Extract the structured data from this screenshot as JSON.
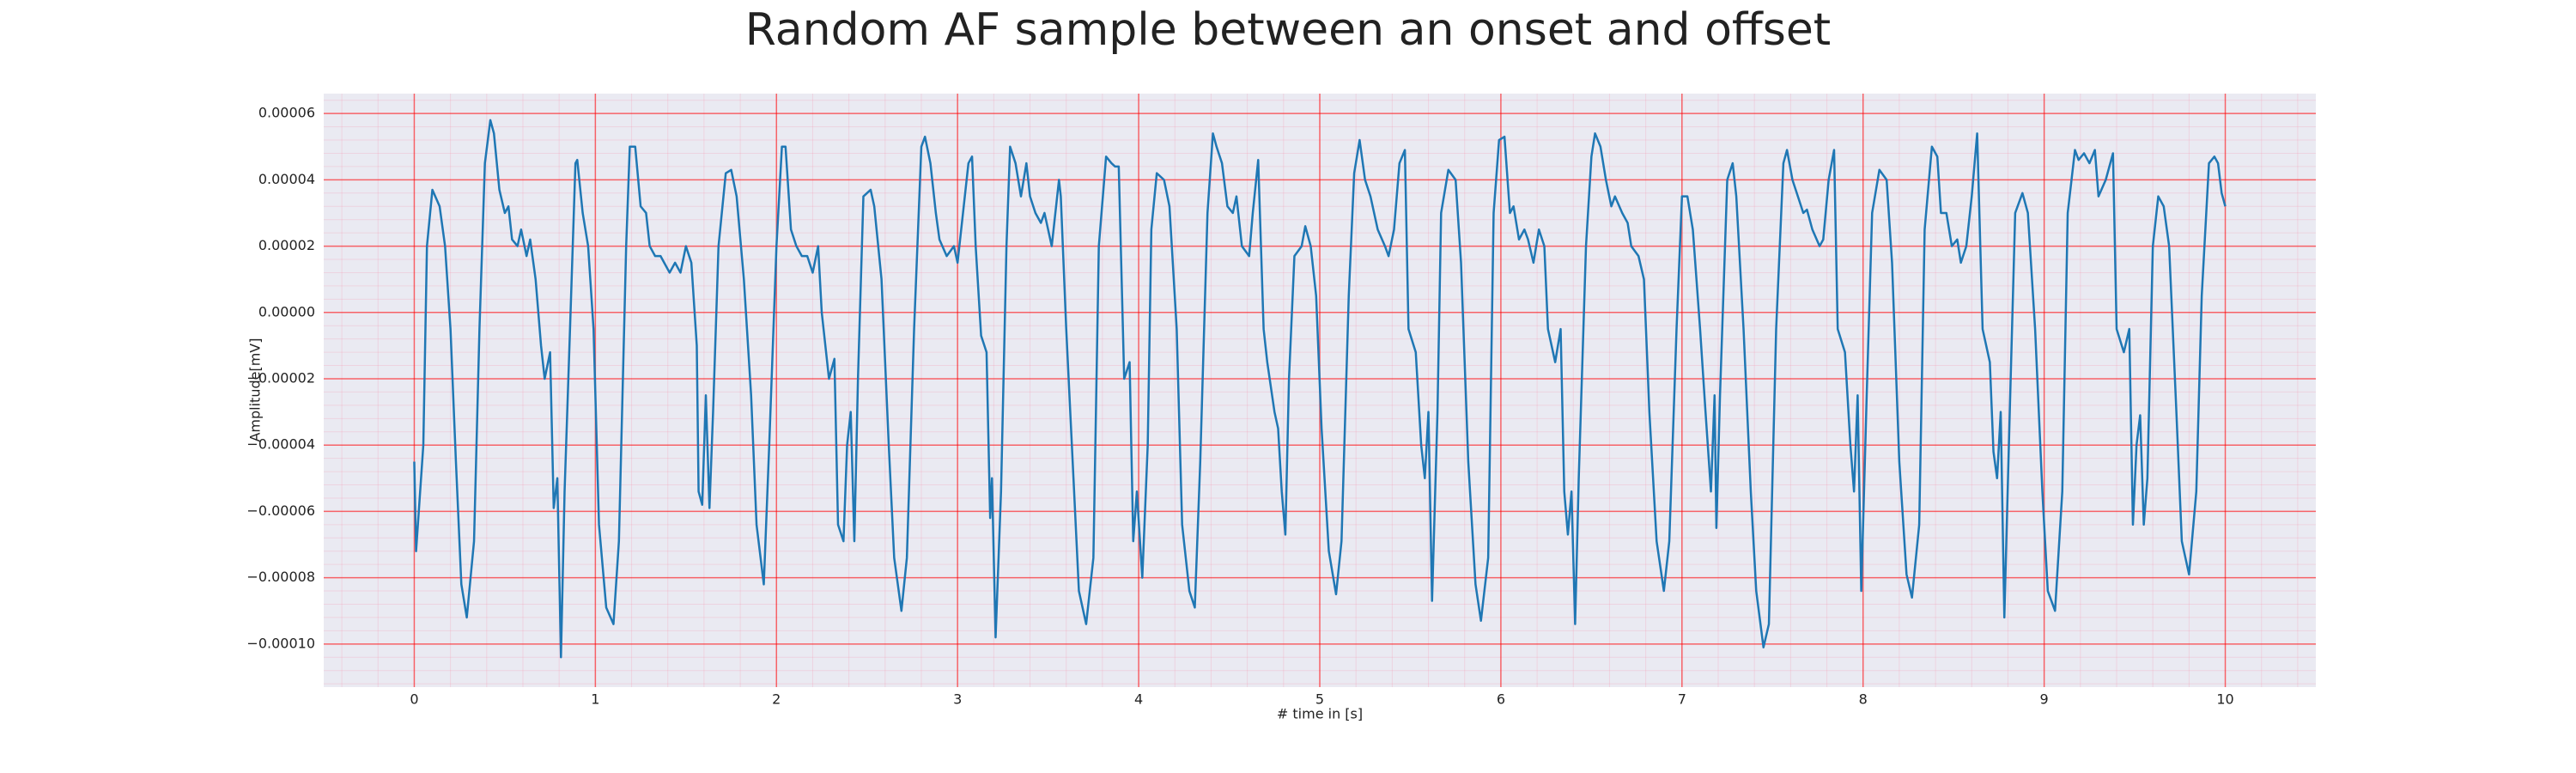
{
  "chart_data": {
    "type": "line",
    "title": "Random AF sample between an onset and offset",
    "xlabel": "# time in [s]",
    "ylabel": "Amplitude[mV]",
    "color": "#1f77b4",
    "grid": true,
    "xlim": [
      -0.5,
      10.5
    ],
    "ylim": [
      -0.000113,
      6.6e-05
    ],
    "xticks": [
      0,
      1,
      2,
      3,
      4,
      5,
      6,
      7,
      8,
      9,
      10
    ],
    "yticks": [
      {
        "value": -0.0001,
        "label": "−0.00010"
      },
      {
        "value": -8e-05,
        "label": "−0.00008"
      },
      {
        "value": -6e-05,
        "label": "−0.00006"
      },
      {
        "value": -4e-05,
        "label": "−0.00004"
      },
      {
        "value": -2e-05,
        "label": "−0.00002"
      },
      {
        "value": 0,
        "label": "0.00000"
      },
      {
        "value": 2e-05,
        "label": "0.00002"
      },
      {
        "value": 4e-05,
        "label": "0.00004"
      },
      {
        "value": 6e-05,
        "label": "0.00006"
      }
    ],
    "x": [
      0,
      0.01,
      0.05,
      0.07,
      0.1,
      0.14,
      0.17,
      0.2,
      0.23,
      0.26,
      0.29,
      0.33,
      0.36,
      0.39,
      0.42,
      0.44,
      0.47,
      0.5,
      0.52,
      0.54,
      0.57,
      0.59,
      0.62,
      0.64,
      0.67,
      0.7,
      0.72,
      0.75,
      0.77,
      0.79,
      0.81,
      0.83,
      0.86,
      0.89,
      0.9,
      0.93,
      0.96,
      0.99,
      1.02,
      1.06,
      1.1,
      1.13,
      1.17,
      1.19,
      1.22,
      1.25,
      1.28,
      1.3,
      1.33,
      1.36,
      1.38,
      1.41,
      1.44,
      1.47,
      1.5,
      1.53,
      1.56,
      1.57,
      1.59,
      1.61,
      1.63,
      1.65,
      1.68,
      1.72,
      1.75,
      1.78,
      1.82,
      1.86,
      1.89,
      1.93,
      1.96,
      2.0,
      2.03,
      2.05,
      2.08,
      2.11,
      2.14,
      2.17,
      2.2,
      2.23,
      2.25,
      2.29,
      2.32,
      2.34,
      2.37,
      2.39,
      2.41,
      2.43,
      2.45,
      2.48,
      2.52,
      2.54,
      2.58,
      2.62,
      2.65,
      2.69,
      2.72,
      2.76,
      2.8,
      2.82,
      2.85,
      2.88,
      2.9,
      2.94,
      2.98,
      3.0,
      3.03,
      3.06,
      3.08,
      3.1,
      3.13,
      3.16,
      3.18,
      3.19,
      3.21,
      3.24,
      3.27,
      3.29,
      3.32,
      3.35,
      3.38,
      3.4,
      3.43,
      3.46,
      3.48,
      3.52,
      3.56,
      3.57,
      3.6,
      3.64,
      3.67,
      3.71,
      3.75,
      3.78,
      3.82,
      3.85,
      3.87,
      3.89,
      3.92,
      3.95,
      3.97,
      3.99,
      4.02,
      4.05,
      4.07,
      4.1,
      4.14,
      4.17,
      4.21,
      4.24,
      4.28,
      4.31,
      4.34,
      4.38,
      4.41,
      4.43,
      4.46,
      4.49,
      4.52,
      4.54,
      4.57,
      4.61,
      4.63,
      4.66,
      4.69,
      4.71,
      4.75,
      4.77,
      4.79,
      4.81,
      4.83,
      4.86,
      4.9,
      4.92,
      4.95,
      4.98,
      5.01,
      5.05,
      5.09,
      5.12,
      5.16,
      5.19,
      5.22,
      5.25,
      5.28,
      5.32,
      5.36,
      5.38,
      5.41,
      5.44,
      5.47,
      5.49,
      5.53,
      5.56,
      5.58,
      5.6,
      5.62,
      5.65,
      5.67,
      5.71,
      5.75,
      5.78,
      5.82,
      5.86,
      5.89,
      5.93,
      5.96,
      5.99,
      6.02,
      6.05,
      6.07,
      6.1,
      6.13,
      6.15,
      6.18,
      6.21,
      6.24,
      6.26,
      6.3,
      6.33,
      6.35,
      6.37,
      6.39,
      6.41,
      6.43,
      6.47,
      6.5,
      6.52,
      6.55,
      6.58,
      6.61,
      6.63,
      6.67,
      6.7,
      6.72,
      6.76,
      6.79,
      6.82,
      6.86,
      6.9,
      6.93,
      6.97,
      7.0,
      7.03,
      7.06,
      7.1,
      7.13,
      7.16,
      7.18,
      7.19,
      7.21,
      7.25,
      7.28,
      7.3,
      7.34,
      7.38,
      7.41,
      7.45,
      7.48,
      7.52,
      7.56,
      7.58,
      7.61,
      7.64,
      7.67,
      7.69,
      7.72,
      7.76,
      7.78,
      7.81,
      7.84,
      7.86,
      7.9,
      7.93,
      7.95,
      7.97,
      7.99,
      8.02,
      8.05,
      8.09,
      8.13,
      8.16,
      8.2,
      8.24,
      8.27,
      8.31,
      8.34,
      8.38,
      8.41,
      8.43,
      8.46,
      8.49,
      8.52,
      8.54,
      8.57,
      8.6,
      8.63,
      8.66,
      8.7,
      8.72,
      8.74,
      8.76,
      8.78,
      8.81,
      8.84,
      8.88,
      8.91,
      8.95,
      8.99,
      9.02,
      9.06,
      9.1,
      9.13,
      9.17,
      9.19,
      9.22,
      9.25,
      9.28,
      9.3,
      9.34,
      9.38,
      9.4,
      9.44,
      9.47,
      9.49,
      9.51,
      9.53,
      9.55,
      9.57,
      9.6,
      9.63,
      9.66,
      9.69,
      9.73,
      9.76,
      9.8,
      9.84,
      9.87,
      9.91,
      9.94,
      9.96,
      9.98,
      10.0
    ],
    "values": [
      -4.5e-05,
      -7.2e-05,
      -4e-05,
      2e-05,
      3.7e-05,
      3.2e-05,
      2e-05,
      -5e-06,
      -4.5e-05,
      -8.2e-05,
      -9.2e-05,
      -6.9e-05,
      -5e-06,
      4.5e-05,
      5.8e-05,
      5.4e-05,
      3.7e-05,
      3e-05,
      3.2e-05,
      2.2e-05,
      2e-05,
      2.5e-05,
      1.7e-05,
      2.2e-05,
      1e-05,
      -1e-05,
      -2e-05,
      -1.2e-05,
      -5.9e-05,
      -5e-05,
      -0.000104,
      -5.4e-05,
      -5e-06,
      4.5e-05,
      4.6e-05,
      3e-05,
      2e-05,
      -5e-06,
      -6.4e-05,
      -8.9e-05,
      -9.4e-05,
      -6.9e-05,
      2e-05,
      5e-05,
      5e-05,
      3.2e-05,
      3e-05,
      2e-05,
      1.7e-05,
      1.7e-05,
      1.5e-05,
      1.2e-05,
      1.5e-05,
      1.2e-05,
      2e-05,
      1.5e-05,
      -1e-05,
      -5.4e-05,
      -5.8e-05,
      -2.5e-05,
      -5.9e-05,
      -3e-05,
      2e-05,
      4.2e-05,
      4.3e-05,
      3.5e-05,
      1e-05,
      -2.5e-05,
      -6.4e-05,
      -8.2e-05,
      -4e-05,
      2e-05,
      5e-05,
      5e-05,
      2.5e-05,
      2e-05,
      1.7e-05,
      1.7e-05,
      1.2e-05,
      2e-05,
      0,
      -2e-05,
      -1.4e-05,
      -6.4e-05,
      -6.9e-05,
      -4e-05,
      -3e-05,
      -6.9e-05,
      -2e-05,
      3.5e-05,
      3.7e-05,
      3.2e-05,
      1e-05,
      -4e-05,
      -7.4e-05,
      -9e-05,
      -7.4e-05,
      -5e-06,
      5e-05,
      5.3e-05,
      4.5e-05,
      3e-05,
      2.2e-05,
      1.7e-05,
      2e-05,
      1.5e-05,
      3e-05,
      4.5e-05,
      4.7e-05,
      2e-05,
      -7e-06,
      -1.2e-05,
      -6.2e-05,
      -5e-05,
      -9.8e-05,
      -5.4e-05,
      2e-05,
      5e-05,
      4.5e-05,
      3.5e-05,
      4.5e-05,
      3.5e-05,
      3e-05,
      2.7e-05,
      3e-05,
      2e-05,
      4e-05,
      3.5e-05,
      -5e-06,
      -5e-05,
      -8.4e-05,
      -9.4e-05,
      -7.4e-05,
      2e-05,
      4.7e-05,
      4.5e-05,
      4.4e-05,
      4.4e-05,
      -2e-05,
      -1.5e-05,
      -6.9e-05,
      -5.4e-05,
      -8e-05,
      -4e-05,
      2.5e-05,
      4.2e-05,
      4e-05,
      3.2e-05,
      -5e-06,
      -6.4e-05,
      -8.4e-05,
      -8.9e-05,
      -4.5e-05,
      3e-05,
      5.4e-05,
      5e-05,
      4.5e-05,
      3.2e-05,
      3e-05,
      3.5e-05,
      2e-05,
      1.7e-05,
      3e-05,
      4.6e-05,
      -5e-06,
      -1.5e-05,
      -3e-05,
      -3.5e-05,
      -5.4e-05,
      -6.7e-05,
      -2e-05,
      1.7e-05,
      2e-05,
      2.6e-05,
      2e-05,
      5e-06,
      -3.5e-05,
      -7.2e-05,
      -8.5e-05,
      -6.9e-05,
      5e-06,
      4.2e-05,
      5.2e-05,
      4e-05,
      3.5e-05,
      2.5e-05,
      2e-05,
      1.7e-05,
      2.5e-05,
      4.5e-05,
      4.9e-05,
      -5e-06,
      -1.2e-05,
      -4e-05,
      -5e-05,
      -3e-05,
      -8.7e-05,
      -3e-05,
      3e-05,
      4.3e-05,
      4e-05,
      1.5e-05,
      -4.5e-05,
      -8.2e-05,
      -9.3e-05,
      -7.4e-05,
      3e-05,
      5.2e-05,
      5.3e-05,
      3e-05,
      3.2e-05,
      2.2e-05,
      2.5e-05,
      2.2e-05,
      1.5e-05,
      2.5e-05,
      2e-05,
      -5e-06,
      -1.5e-05,
      -5e-06,
      -5.4e-05,
      -6.7e-05,
      -5.4e-05,
      -9.4e-05,
      -5e-05,
      2e-05,
      4.7e-05,
      5.4e-05,
      5e-05,
      4e-05,
      3.2e-05,
      3.5e-05,
      3e-05,
      2.7e-05,
      2e-05,
      1.7e-05,
      1e-05,
      -3e-05,
      -6.9e-05,
      -8.4e-05,
      -6.9e-05,
      -5e-06,
      3.5e-05,
      3.5e-05,
      2.5e-05,
      -5e-06,
      -3e-05,
      -5.4e-05,
      -2.5e-05,
      -6.5e-05,
      -2.5e-05,
      4e-05,
      4.5e-05,
      3.5e-05,
      -5e-06,
      -5.4e-05,
      -8.4e-05,
      -0.000101,
      -9.4e-05,
      -5e-06,
      4.5e-05,
      4.9e-05,
      4e-05,
      3.5e-05,
      3e-05,
      3.1e-05,
      2.5e-05,
      2e-05,
      2.2e-05,
      4e-05,
      4.9e-05,
      -5e-06,
      -1.2e-05,
      -4e-05,
      -5.4e-05,
      -2.5e-05,
      -8.4e-05,
      -2.5e-05,
      3e-05,
      4.3e-05,
      4e-05,
      1.5e-05,
      -4.5e-05,
      -7.9e-05,
      -8.6e-05,
      -6.4e-05,
      2.5e-05,
      5e-05,
      4.7e-05,
      3e-05,
      3e-05,
      2e-05,
      2.2e-05,
      1.5e-05,
      2e-05,
      3.5e-05,
      5.4e-05,
      -5e-06,
      -1.5e-05,
      -4.2e-05,
      -5e-05,
      -3e-05,
      -9.2e-05,
      -3e-05,
      3e-05,
      3.6e-05,
      3e-05,
      -5e-06,
      -5.4e-05,
      -8.4e-05,
      -9e-05,
      -5.4e-05,
      3e-05,
      4.9e-05,
      4.6e-05,
      4.8e-05,
      4.5e-05,
      4.9e-05,
      3.5e-05,
      4e-05,
      4.8e-05,
      -5e-06,
      -1.2e-05,
      -5e-06,
      -6.4e-05,
      -4e-05,
      -3.1e-05,
      -6.4e-05,
      -5e-05,
      2e-05,
      3.5e-05,
      3.2e-05,
      2e-05,
      -3e-05,
      -6.9e-05,
      -7.9e-05,
      -5.4e-05,
      5e-06,
      4.5e-05,
      4.7e-05,
      4.5e-05,
      3.6e-05,
      3.2e-05
    ]
  }
}
